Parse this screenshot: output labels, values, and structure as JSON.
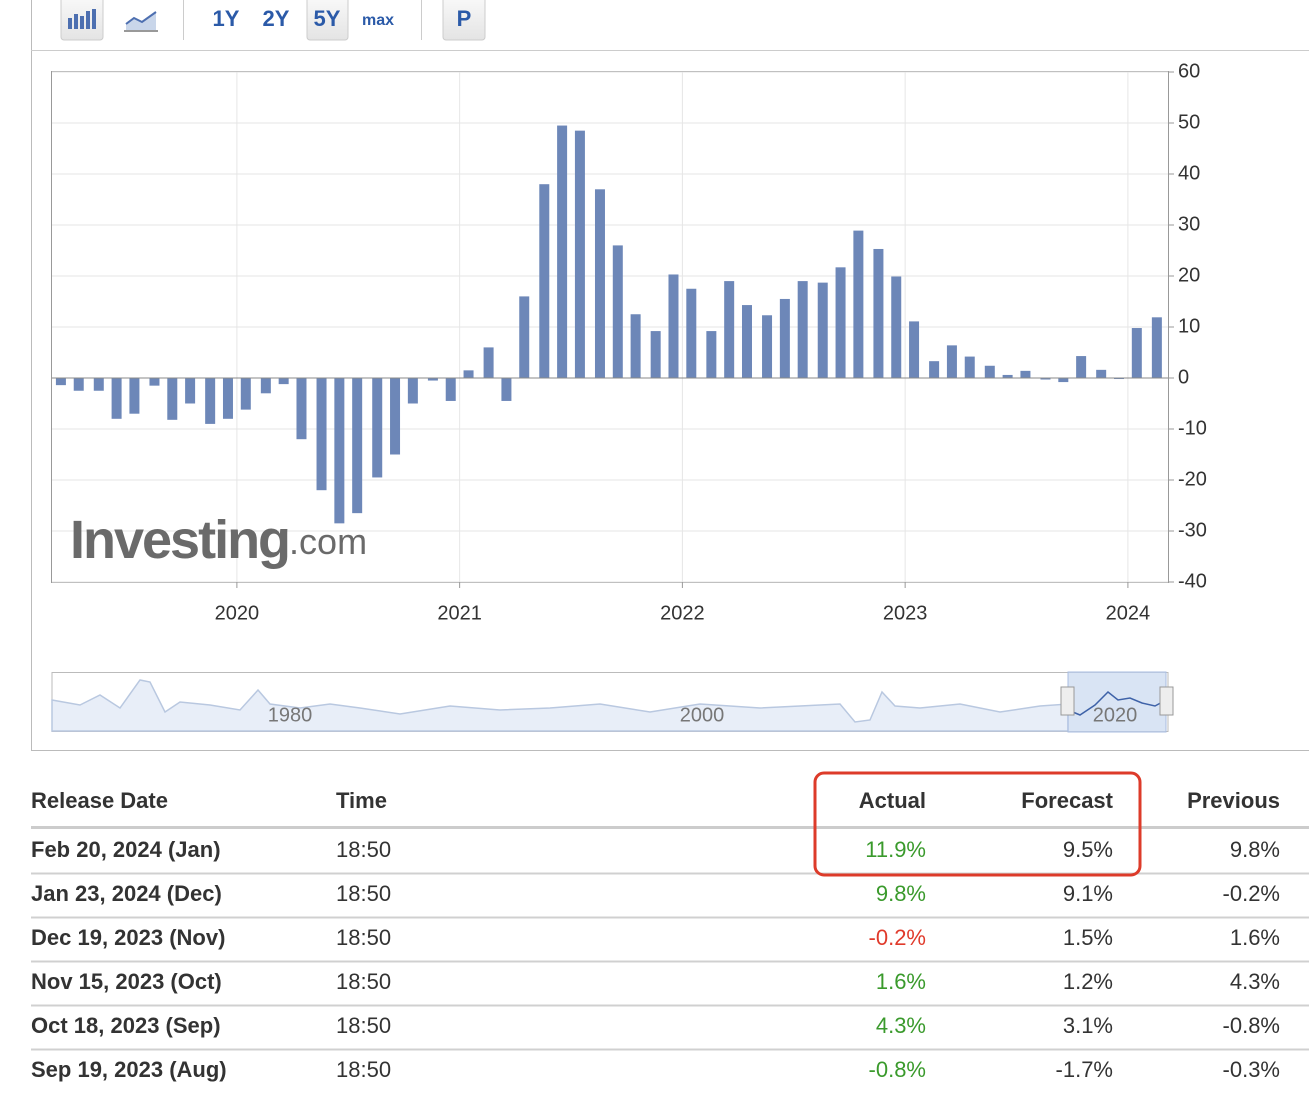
{
  "toolbar": {
    "buttons": [
      "1Y",
      "2Y",
      "5Y",
      "max",
      "P"
    ]
  },
  "chart_data": {
    "type": "bar",
    "x": [
      2019.21,
      2019.29,
      2019.38,
      2019.46,
      2019.54,
      2019.63,
      2019.71,
      2019.79,
      2019.88,
      2019.96,
      2020.04,
      2020.13,
      2020.21,
      2020.29,
      2020.38,
      2020.46,
      2020.54,
      2020.63,
      2020.71,
      2020.79,
      2020.88,
      2020.96,
      2021.04,
      2021.13,
      2021.21,
      2021.29,
      2021.38,
      2021.46,
      2021.54,
      2021.63,
      2021.71,
      2021.79,
      2021.88,
      2021.96,
      2022.04,
      2022.13,
      2022.21,
      2022.29,
      2022.38,
      2022.46,
      2022.54,
      2022.63,
      2022.71,
      2022.79,
      2022.88,
      2022.96,
      2023.04,
      2023.13,
      2023.21,
      2023.29,
      2023.38,
      2023.46,
      2023.54,
      2023.63,
      2023.71,
      2023.79,
      2023.88,
      2023.96,
      2024.04,
      2024.13
    ],
    "values": [
      -1.4,
      -2.5,
      -2.5,
      -8,
      -7,
      -1.5,
      -8.2,
      -5,
      -9,
      -8,
      -6.2,
      -3,
      -1.2,
      -12,
      -22,
      -28.5,
      -26.5,
      -19.5,
      -15,
      -5,
      -0.5,
      -4.5,
      1.5,
      6,
      -4.5,
      16,
      38,
      49.5,
      48.5,
      37,
      26,
      12.5,
      9.2,
      20.3,
      17.5,
      9.2,
      19,
      14.3,
      12.3,
      15.5,
      19,
      18.7,
      21.7,
      28.9,
      25.3,
      19.9,
      11.1,
      3.3,
      6.4,
      4.2,
      2.4,
      0.6,
      1.4,
      -0.3,
      -0.8,
      4.3,
      1.6,
      -0.2,
      9.8,
      11.9
    ],
    "color": "#6d87b8",
    "xlim": [
      2019.17,
      2024.18
    ],
    "xticks": [
      2020,
      2021,
      2022,
      2023,
      2024
    ],
    "ylim": [
      -40,
      60
    ],
    "yticks": [
      -40,
      -30,
      -20,
      -10,
      0,
      10,
      20,
      30,
      40,
      50,
      60
    ],
    "grid": true,
    "y_axis_side": "right"
  },
  "watermark": {
    "brand": "Investing",
    "suffix": ".com"
  },
  "navigator": {
    "labels": [
      "1980",
      "2000",
      "2020"
    ]
  },
  "table": {
    "columns": [
      "Release Date",
      "Time",
      "Actual",
      "Forecast",
      "Previous"
    ],
    "rows": [
      [
        "Feb 20, 2024 (Jan)",
        "18:50",
        "11.9%",
        "9.5%",
        "9.8%"
      ],
      [
        "Jan 23, 2024 (Dec)",
        "18:50",
        "9.8%",
        "9.1%",
        "-0.2%"
      ],
      [
        "Dec 19, 2023 (Nov)",
        "18:50",
        "-0.2%",
        "1.5%",
        "1.6%"
      ],
      [
        "Nov 15, 2023 (Oct)",
        "18:50",
        "1.6%",
        "1.2%",
        "4.3%"
      ],
      [
        "Oct 18, 2023 (Sep)",
        "18:50",
        "4.3%",
        "3.1%",
        "-0.8%"
      ],
      [
        "Sep 19, 2023 (Aug)",
        "18:50",
        "-0.8%",
        "-1.7%",
        "-0.3%"
      ]
    ]
  }
}
